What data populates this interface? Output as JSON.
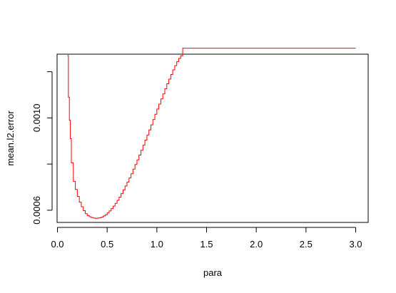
{
  "chart_data": {
    "type": "line",
    "title": "",
    "xlabel": "para",
    "ylabel": "mean.l2.error",
    "xlim": [
      0.0,
      3.0
    ],
    "ylim": [
      0.000487,
      0.00133
    ],
    "x_ticks": [
      0.0,
      0.5,
      1.0,
      1.5,
      2.0,
      2.5,
      3.0
    ],
    "x_tick_labels": [
      "0.0",
      "0.5",
      "1.0",
      "1.5",
      "2.0",
      "2.5",
      "3.0"
    ],
    "y_ticks": [
      0.0006,
      0.0008,
      0.001,
      0.0012
    ],
    "y_tick_labels": [
      "0.0006",
      "",
      "0.0010",
      ""
    ],
    "grid": false,
    "legend": "none",
    "line_color": "#ff0000",
    "step_style": "staircase",
    "series": [
      {
        "x": [
          0.1,
          0.11,
          0.12,
          0.13,
          0.14,
          0.16,
          0.18,
          0.2,
          0.22,
          0.24,
          0.26,
          0.28,
          0.3,
          0.32,
          0.34,
          0.36,
          0.38,
          0.4,
          0.42,
          0.44,
          0.46,
          0.48,
          0.5,
          0.52,
          0.54,
          0.56,
          0.58,
          0.6,
          0.62,
          0.64,
          0.66,
          0.68,
          0.7,
          0.72,
          0.74,
          0.76,
          0.78,
          0.8,
          0.82,
          0.84,
          0.86,
          0.88,
          0.9,
          0.92,
          0.94,
          0.96,
          0.98,
          1.0,
          1.02,
          1.04,
          1.06,
          1.08,
          1.1,
          1.12,
          1.14,
          1.16,
          1.18,
          1.2,
          1.22,
          1.24,
          1.26,
          1.5,
          2.0,
          2.5,
          3.0
        ],
        "values": [
          0.00127,
          0.00109,
          0.00099,
          0.00091,
          0.000805,
          0.000725,
          0.00069,
          0.00066,
          0.000635,
          0.000615,
          0.000598,
          0.000585,
          0.000577,
          0.000572,
          0.000568,
          0.000566,
          0.000565,
          0.000566,
          0.000567,
          0.00057,
          0.000575,
          0.00058,
          0.000588,
          0.000597,
          0.000607,
          0.000618,
          0.00063,
          0.000643,
          0.000657,
          0.000672,
          0.000688,
          0.000705,
          0.000722,
          0.00074,
          0.000758,
          0.000778,
          0.000798,
          0.000818,
          0.000839,
          0.00086,
          0.000882,
          0.000904,
          0.000926,
          0.000948,
          0.00097,
          0.000993,
          0.001016,
          0.001038,
          0.00106,
          0.001082,
          0.001104,
          0.001126,
          0.001148,
          0.001168,
          0.001188,
          0.001208,
          0.001226,
          0.001244,
          0.001258,
          0.001269,
          0.001302,
          0.001302,
          0.001302,
          0.001302,
          0.001302
        ]
      }
    ]
  }
}
